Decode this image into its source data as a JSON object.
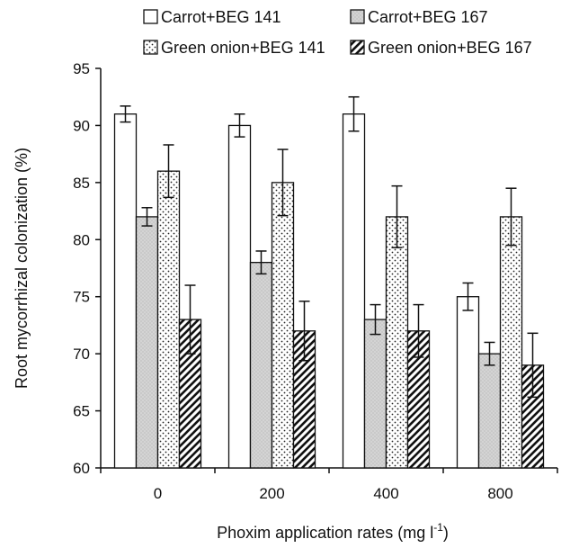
{
  "chart_data": {
    "type": "bar",
    "xlabel": "Phoxim application rates (mg l",
    "xlabel_superscript": "-1",
    "xlabel_suffix": ")",
    "ylabel": "Root mycorrhizal colonization (%)",
    "ylim": [
      60,
      95
    ],
    "yticks": [
      60,
      65,
      70,
      75,
      80,
      85,
      90,
      95
    ],
    "categories": [
      "0",
      "200",
      "400",
      "800"
    ],
    "legend_position": "top",
    "series": [
      {
        "name": "Carrot+BEG 141",
        "values": [
          91,
          90,
          91,
          75
        ],
        "errors": [
          0.7,
          1.0,
          1.5,
          1.2
        ],
        "fill": "white"
      },
      {
        "name": "Carrot+BEG 167",
        "values": [
          82,
          78,
          73,
          70
        ],
        "errors": [
          0.8,
          1.0,
          1.3,
          1.0
        ],
        "fill": "gray"
      },
      {
        "name": "Green onion+BEG 141",
        "values": [
          86,
          85,
          82,
          82
        ],
        "errors": [
          2.3,
          2.9,
          2.7,
          2.5
        ],
        "fill": "dots"
      },
      {
        "name": "Green onion+BEG 167",
        "values": [
          73,
          72,
          72,
          69
        ],
        "errors": [
          3.0,
          2.6,
          2.3,
          2.8
        ],
        "fill": "hatch"
      }
    ]
  }
}
